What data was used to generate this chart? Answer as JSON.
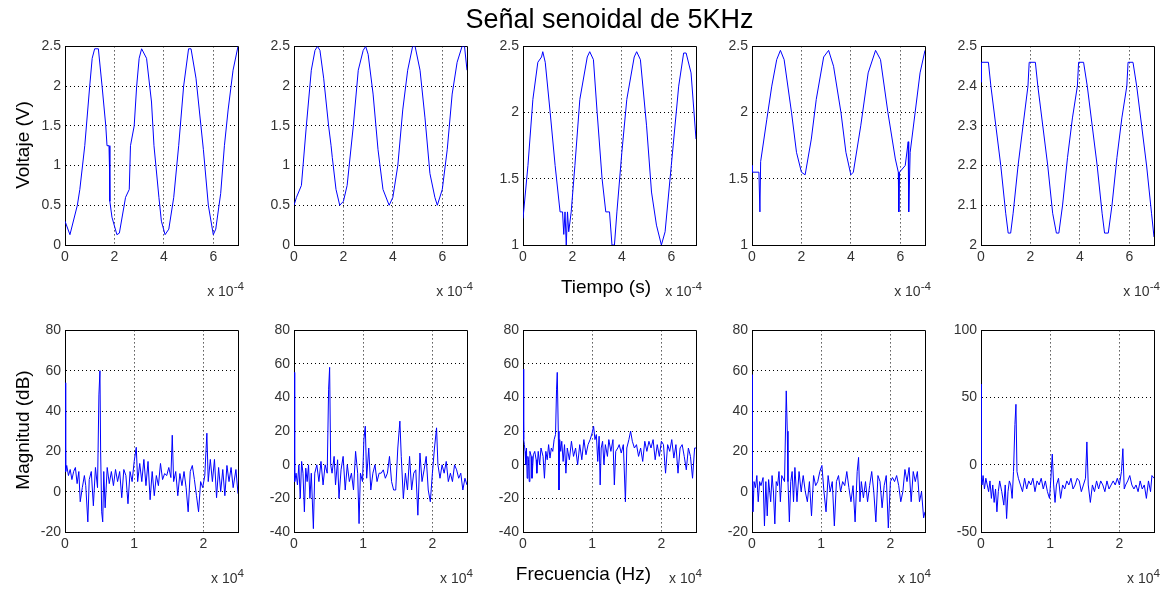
{
  "chart_data": [
    {
      "type": "line",
      "ylabel": "Voltaje (V)",
      "annotations": [
        "x 10$^{-4}$"
      ],
      "color": "#0000ff",
      "grid": true,
      "xlim": [
        0,
        7
      ],
      "xticks": [
        0,
        2,
        4,
        6
      ],
      "ylim": [
        0,
        2.5
      ],
      "yticks": [
        0,
        0.5,
        1,
        1.5,
        2,
        2.5
      ],
      "x": [
        0,
        0.2,
        0.5,
        0.6,
        0.8,
        1.0,
        1.1,
        1.2,
        1.35,
        1.5,
        1.65,
        1.7,
        1.78,
        1.8,
        1.81,
        1.82,
        1.9,
        2.1,
        2.2,
        2.45,
        2.6,
        2.65,
        2.8,
        2.9,
        3.0,
        3.1,
        3.3,
        3.5,
        3.6,
        3.8,
        3.9,
        4.05,
        4.2,
        4.4,
        4.6,
        4.8,
        5.0,
        5.1,
        5.3,
        5.5,
        5.6,
        5.8,
        6.0,
        6.1,
        6.3,
        6.45,
        6.6,
        6.8,
        7.0
      ],
      "values": [
        0.3,
        0.13,
        0.5,
        0.7,
        1.25,
        2.0,
        2.35,
        2.47,
        2.47,
        2.0,
        1.5,
        1.25,
        1.25,
        0.97,
        1.25,
        0.55,
        0.35,
        0.13,
        0.15,
        0.6,
        0.7,
        1.25,
        1.5,
        2.0,
        2.35,
        2.47,
        2.35,
        1.8,
        1.25,
        0.6,
        0.3,
        0.13,
        0.2,
        0.6,
        1.25,
        2.0,
        2.47,
        2.47,
        2.1,
        1.5,
        1.2,
        0.5,
        0.13,
        0.2,
        0.65,
        1.25,
        1.7,
        2.2,
        2.5
      ]
    },
    {
      "type": "line",
      "annotations": [
        "x 10$^{-4}$"
      ],
      "color": "#0000ff",
      "grid": true,
      "xlim": [
        0,
        7
      ],
      "xticks": [
        0,
        2,
        4,
        6
      ],
      "ylim": [
        0,
        2.5
      ],
      "yticks": [
        0,
        0.5,
        1,
        1.5,
        2,
        2.5
      ],
      "x": [
        0,
        0.1,
        0.3,
        0.5,
        0.7,
        0.85,
        0.95,
        1.05,
        1.2,
        1.4,
        1.5,
        1.55,
        1.7,
        1.85,
        2.0,
        2.15,
        2.4,
        2.6,
        2.8,
        2.9,
        3.0,
        3.2,
        3.4,
        3.6,
        3.85,
        4.0,
        4.2,
        4.4,
        4.6,
        4.8,
        4.9,
        5.1,
        5.3,
        5.5,
        5.7,
        5.8,
        6.0,
        6.2,
        6.4,
        6.6,
        6.8,
        6.9,
        7.0
      ],
      "values": [
        0.5,
        0.6,
        0.75,
        1.5,
        2.2,
        2.45,
        2.5,
        2.45,
        2.1,
        1.5,
        1.25,
        1.1,
        0.7,
        0.5,
        0.55,
        0.75,
        1.5,
        2.2,
        2.45,
        2.5,
        2.4,
        1.9,
        1.2,
        0.7,
        0.5,
        0.6,
        1.0,
        1.7,
        2.2,
        2.5,
        2.5,
        2.2,
        1.6,
        0.9,
        0.6,
        0.5,
        0.7,
        1.2,
        1.9,
        2.3,
        2.5,
        2.5,
        2.2
      ]
    },
    {
      "type": "line",
      "title": "Señal senoidal de 5KHz",
      "xlabel": "Tiempo (s)",
      "annotations": [
        "x 10$^{-4}$"
      ],
      "color": "#0000ff",
      "grid": true,
      "xlim": [
        0,
        7
      ],
      "xticks": [
        0,
        2,
        4,
        6
      ],
      "ylim": [
        1,
        2.5
      ],
      "yticks": [
        1,
        1.5,
        2,
        2.5
      ],
      "x": [
        0,
        0.2,
        0.4,
        0.6,
        0.75,
        0.8,
        0.9,
        1.1,
        1.3,
        1.5,
        1.6,
        1.65,
        1.7,
        1.75,
        1.8,
        1.85,
        1.95,
        2.1,
        2.3,
        2.6,
        2.7,
        2.85,
        3.0,
        3.2,
        3.35,
        3.5,
        3.6,
        3.7,
        3.8,
        4.0,
        4.2,
        4.5,
        4.6,
        4.75,
        5.0,
        5.2,
        5.4,
        5.6,
        5.75,
        6.0,
        6.3,
        6.5,
        6.6,
        6.8,
        7.0
      ],
      "values": [
        1.2,
        1.6,
        2.1,
        2.38,
        2.42,
        2.46,
        2.38,
        2.0,
        1.6,
        1.25,
        1.25,
        1.08,
        1.25,
        1.0,
        1.25,
        1.1,
        1.25,
        1.6,
        2.1,
        2.42,
        2.46,
        2.4,
        2.0,
        1.5,
        1.25,
        1.25,
        1.0,
        1.0,
        1.25,
        1.7,
        2.1,
        2.42,
        2.46,
        2.4,
        1.9,
        1.4,
        1.15,
        1.0,
        1.1,
        1.6,
        2.2,
        2.45,
        2.45,
        2.3,
        1.8
      ]
    },
    {
      "type": "line",
      "annotations": [
        "x 10$^{-4}$"
      ],
      "color": "#0000ff",
      "grid": true,
      "xlim": [
        0,
        7
      ],
      "xticks": [
        0,
        2,
        4,
        6
      ],
      "ylim": [
        1,
        2.5
      ],
      "yticks": [
        1,
        1.5,
        2,
        2.5
      ],
      "x": [
        0,
        0.02,
        0.28,
        0.32,
        0.35,
        0.6,
        0.8,
        1.0,
        1.15,
        1.3,
        1.6,
        1.8,
        2.0,
        2.15,
        2.4,
        2.6,
        2.9,
        3.1,
        3.3,
        3.6,
        3.8,
        4.0,
        4.1,
        4.4,
        4.7,
        5.0,
        5.2,
        5.5,
        5.8,
        5.92,
        5.94,
        5.97,
        6.2,
        6.32,
        6.34,
        6.4,
        6.6,
        6.8,
        7.0
      ],
      "values": [
        1.6,
        1.55,
        1.55,
        1.25,
        1.63,
        1.95,
        2.2,
        2.4,
        2.47,
        2.4,
        2.0,
        1.7,
        1.55,
        1.53,
        1.8,
        2.1,
        2.42,
        2.47,
        2.35,
        2.0,
        1.7,
        1.53,
        1.55,
        1.9,
        2.3,
        2.47,
        2.4,
        2.0,
        1.65,
        1.55,
        1.25,
        1.55,
        1.6,
        1.78,
        1.25,
        1.7,
        2.0,
        2.3,
        2.47
      ]
    },
    {
      "type": "line",
      "annotations": [
        "x 10$^{-4}$"
      ],
      "color": "#0000ff",
      "grid": true,
      "xlim": [
        0,
        7
      ],
      "xticks": [
        0,
        2,
        4,
        6
      ],
      "ylim": [
        2,
        2.5
      ],
      "yticks": [
        2,
        2.1,
        2.2,
        2.3,
        2.4,
        2.5
      ],
      "x": [
        0,
        0.02,
        0.3,
        0.4,
        0.6,
        0.8,
        1.0,
        1.1,
        1.2,
        1.3,
        1.5,
        1.7,
        1.9,
        1.95,
        2.2,
        2.3,
        2.5,
        2.7,
        2.9,
        3.05,
        3.15,
        3.3,
        3.5,
        3.7,
        3.9,
        3.95,
        4.15,
        4.3,
        4.5,
        4.7,
        4.9,
        5.0,
        5.15,
        5.3,
        5.5,
        5.7,
        5.9,
        5.95,
        6.15,
        6.3,
        6.5,
        6.7,
        6.9,
        7.0
      ],
      "values": [
        2.41,
        2.46,
        2.46,
        2.4,
        2.3,
        2.2,
        2.08,
        2.03,
        2.03,
        2.08,
        2.2,
        2.3,
        2.4,
        2.46,
        2.46,
        2.4,
        2.3,
        2.2,
        2.08,
        2.03,
        2.03,
        2.1,
        2.22,
        2.32,
        2.4,
        2.46,
        2.46,
        2.4,
        2.3,
        2.2,
        2.08,
        2.03,
        2.03,
        2.1,
        2.22,
        2.32,
        2.4,
        2.46,
        2.46,
        2.4,
        2.3,
        2.2,
        2.08,
        2.02
      ]
    },
    {
      "type": "line",
      "ylabel": "Magnitud (dB)",
      "annotations": [
        "x 10$^{4}$"
      ],
      "color": "#0000ff",
      "grid": true,
      "xlim": [
        0,
        2.5
      ],
      "xticks": [
        0,
        1,
        2
      ],
      "ylim": [
        -20,
        80
      ],
      "yticks": [
        -20,
        0,
        20,
        40,
        60,
        80
      ],
      "x": [
        0,
        0.01,
        0.025,
        0.05,
        0.075,
        0.1,
        0.125,
        0.15,
        0.175,
        0.2,
        0.22,
        0.25,
        0.28,
        0.3,
        0.33,
        0.35,
        0.38,
        0.41,
        0.44,
        0.47,
        0.49,
        0.505,
        0.515,
        0.53,
        0.545,
        0.56,
        0.58,
        0.61,
        0.64,
        0.67,
        0.7,
        0.73,
        0.76,
        0.79,
        0.82,
        0.85,
        0.88,
        0.91,
        0.94,
        0.97,
        1.0,
        1.03,
        1.05,
        1.08,
        1.11,
        1.14,
        1.17,
        1.2,
        1.23,
        1.26,
        1.29,
        1.32,
        1.35,
        1.38,
        1.41,
        1.44,
        1.47,
        1.5,
        1.53,
        1.55,
        1.57,
        1.6,
        1.63,
        1.66,
        1.69,
        1.72,
        1.75,
        1.78,
        1.81,
        1.84,
        1.87,
        1.9,
        1.93,
        1.96,
        1.99,
        2.02,
        2.05,
        2.07,
        2.1,
        2.13,
        2.16,
        2.19,
        2.22,
        2.25,
        2.28,
        2.31,
        2.34,
        2.37,
        2.4,
        2.43,
        2.47,
        2.5
      ],
      "values": [
        54,
        10,
        13,
        8,
        11,
        6,
        10,
        12,
        4,
        10,
        -5,
        2,
        8,
        3,
        -15,
        6,
        10,
        -7,
        12,
        2,
        48,
        60,
        20,
        -10,
        -15,
        10,
        -8,
        12,
        4,
        10,
        3,
        11,
        5,
        10,
        -3,
        11,
        8,
        -6,
        10,
        5,
        15,
        22,
        5,
        14,
        5,
        16,
        3,
        15,
        -4,
        10,
        -2,
        8,
        3,
        14,
        6,
        9,
        8,
        12,
        7,
        28,
        5,
        10,
        -2,
        9,
        3,
        10,
        2,
        -10,
        10,
        13,
        6,
        -2,
        -10,
        5,
        2,
        8,
        29,
        5,
        16,
        5,
        16,
        -3,
        12,
        0,
        11,
        -2,
        13,
        5,
        12,
        2,
        11,
        -1
      ]
    },
    {
      "type": "line",
      "annotations": [
        "x 10$^{4}$"
      ],
      "color": "#0000ff",
      "grid": true,
      "xlim": [
        0,
        2.5
      ],
      "xticks": [
        0,
        1,
        2
      ],
      "ylim": [
        -40,
        80
      ],
      "yticks": [
        -40,
        -20,
        0,
        20,
        40,
        60,
        80
      ],
      "x": [
        0,
        0.01,
        0.03,
        0.05,
        0.07,
        0.09,
        0.11,
        0.13,
        0.15,
        0.17,
        0.19,
        0.21,
        0.23,
        0.25,
        0.28,
        0.3,
        0.33,
        0.36,
        0.39,
        0.42,
        0.45,
        0.48,
        0.5,
        0.515,
        0.53,
        0.55,
        0.58,
        0.6,
        0.63,
        0.65,
        0.68,
        0.71,
        0.74,
        0.77,
        0.8,
        0.83,
        0.86,
        0.89,
        0.92,
        0.94,
        0.96,
        0.99,
        1.01,
        1.03,
        1.05,
        1.08,
        1.11,
        1.14,
        1.17,
        1.2,
        1.23,
        1.26,
        1.29,
        1.32,
        1.35,
        1.38,
        1.41,
        1.44,
        1.47,
        1.5,
        1.53,
        1.55,
        1.58,
        1.61,
        1.64,
        1.67,
        1.7,
        1.73,
        1.76,
        1.79,
        1.82,
        1.85,
        1.88,
        1.91,
        1.94,
        1.97,
        2.0,
        2.03,
        2.06,
        2.08,
        2.11,
        2.14,
        2.17,
        2.2,
        2.23,
        2.26,
        2.29,
        2.32,
        2.35,
        2.38,
        2.41,
        2.44,
        2.47,
        2.5
      ],
      "values": [
        55,
        -10,
        -5,
        -12,
        0,
        -20,
        2,
        -5,
        -28,
        -2,
        -10,
        0,
        -20,
        -5,
        -38,
        -5,
        0,
        -10,
        2,
        -12,
        0,
        -5,
        45,
        58,
        0,
        -5,
        5,
        -12,
        3,
        -20,
        -3,
        5,
        -15,
        0,
        -10,
        -5,
        -15,
        8,
        -5,
        -35,
        -5,
        -10,
        15,
        23,
        -8,
        10,
        -15,
        -5,
        0,
        -10,
        -5,
        -5,
        -3,
        -8,
        -5,
        5,
        -10,
        -15,
        -15,
        10,
        26,
        5,
        -20,
        -5,
        -15,
        5,
        -15,
        -5,
        -3,
        -30,
        7,
        -10,
        -3,
        5,
        -15,
        -22,
        -5,
        10,
        22,
        0,
        -8,
        0,
        -5,
        2,
        -10,
        -5,
        -10,
        0,
        -3,
        -8,
        -5,
        -15,
        -8,
        -12
      ]
    },
    {
      "type": "line",
      "xlabel": "Frecuencia (Hz)",
      "annotations": [
        "x 10$^{4}$"
      ],
      "color": "#0000ff",
      "grid": true,
      "xlim": [
        0,
        2.5
      ],
      "xticks": [
        0,
        1,
        2
      ],
      "ylim": [
        -40,
        80
      ],
      "yticks": [
        -40,
        -20,
        0,
        20,
        40,
        60,
        80
      ],
      "x": [
        0,
        0.01,
        0.02,
        0.03,
        0.04,
        0.05,
        0.06,
        0.07,
        0.08,
        0.09,
        0.1,
        0.12,
        0.13,
        0.15,
        0.17,
        0.19,
        0.2,
        0.22,
        0.24,
        0.26,
        0.29,
        0.31,
        0.33,
        0.35,
        0.37,
        0.39,
        0.41,
        0.43,
        0.45,
        0.47,
        0.485,
        0.495,
        0.51,
        0.52,
        0.53,
        0.545,
        0.56,
        0.58,
        0.6,
        0.62,
        0.64,
        0.67,
        0.7,
        0.73,
        0.76,
        0.79,
        0.82,
        0.85,
        0.88,
        0.91,
        0.94,
        0.97,
        1.0,
        1.02,
        1.04,
        1.06,
        1.08,
        1.1,
        1.115,
        1.13,
        1.15,
        1.17,
        1.19,
        1.22,
        1.24,
        1.27,
        1.3,
        1.32,
        1.34,
        1.37,
        1.39,
        1.42,
        1.45,
        1.48,
        1.5,
        1.53,
        1.555,
        1.58,
        1.61,
        1.64,
        1.67,
        1.7,
        1.73,
        1.76,
        1.79,
        1.82,
        1.85,
        1.88,
        1.91,
        1.94,
        1.97,
        2.0,
        2.03,
        2.06,
        2.09,
        2.12,
        2.15,
        2.18,
        2.21,
        2.24,
        2.27,
        2.3,
        2.33,
        2.36,
        2.39,
        2.42,
        2.45,
        2.48,
        2.5
      ],
      "values": [
        57,
        15,
        12,
        8,
        0,
        10,
        -8,
        5,
        3,
        -10,
        8,
        5,
        -8,
        6,
        8,
        3,
        -5,
        8,
        0,
        10,
        5,
        -8,
        8,
        3,
        12,
        4,
        10,
        8,
        15,
        18,
        45,
        55,
        20,
        -15,
        15,
        8,
        14,
        2,
        12,
        -5,
        10,
        3,
        14,
        5,
        10,
        0,
        12,
        3,
        15,
        6,
        12,
        15,
        19,
        23,
        15,
        18,
        2,
        17,
        -12,
        10,
        14,
        0,
        12,
        5,
        15,
        8,
        15,
        -12,
        8,
        10,
        12,
        7,
        12,
        -22,
        10,
        15,
        20,
        14,
        10,
        12,
        5,
        10,
        2,
        14,
        8,
        14,
        10,
        15,
        3,
        12,
        5,
        14,
        12,
        -5,
        12,
        8,
        15,
        4,
        12,
        -5,
        10,
        12,
        5,
        -3,
        10,
        5,
        -8,
        10,
        10
      ]
    },
    {
      "type": "line",
      "annotations": [
        "x 10$^{4}$"
      ],
      "color": "#0000ff",
      "grid": true,
      "xlim": [
        0,
        2.5
      ],
      "xticks": [
        0,
        1,
        2
      ],
      "ylim": [
        -20,
        80
      ],
      "yticks": [
        -20,
        0,
        20,
        40,
        60,
        80
      ],
      "x": [
        0,
        0.005,
        0.015,
        0.03,
        0.05,
        0.07,
        0.09,
        0.11,
        0.13,
        0.16,
        0.18,
        0.2,
        0.22,
        0.24,
        0.27,
        0.29,
        0.31,
        0.33,
        0.35,
        0.37,
        0.39,
        0.41,
        0.43,
        0.47,
        0.495,
        0.51,
        0.52,
        0.54,
        0.56,
        0.58,
        0.6,
        0.62,
        0.65,
        0.68,
        0.71,
        0.74,
        0.77,
        0.8,
        0.83,
        0.86,
        0.89,
        0.92,
        0.95,
        0.98,
        1.01,
        1.04,
        1.07,
        1.1,
        1.13,
        1.16,
        1.19,
        1.22,
        1.25,
        1.28,
        1.31,
        1.34,
        1.37,
        1.4,
        1.43,
        1.46,
        1.49,
        1.52,
        1.54,
        1.56,
        1.58,
        1.61,
        1.64,
        1.67,
        1.7,
        1.73,
        1.76,
        1.79,
        1.82,
        1.85,
        1.88,
        1.91,
        1.94,
        1.97,
        2.0,
        2.03,
        2.06,
        2.09,
        2.12,
        2.15,
        2.18,
        2.21,
        2.24,
        2.27,
        2.3,
        2.33,
        2.36,
        2.39,
        2.42,
        2.45,
        2.48,
        2.5
      ],
      "values": [
        58,
        10,
        -10,
        5,
        2,
        8,
        -5,
        5,
        3,
        7,
        -17,
        5,
        -12,
        6,
        -5,
        8,
        0,
        -16,
        5,
        3,
        10,
        -5,
        8,
        5,
        50,
        30,
        5,
        -15,
        5,
        10,
        -5,
        12,
        -5,
        10,
        0,
        8,
        0,
        -5,
        5,
        -12,
        8,
        3,
        5,
        10,
        13,
        0,
        -10,
        8,
        0,
        5,
        -17,
        5,
        8,
        0,
        5,
        3,
        10,
        2,
        -5,
        3,
        -15,
        10,
        17,
        -5,
        5,
        -3,
        5,
        -5,
        3,
        10,
        0,
        -15,
        8,
        5,
        -8,
        3,
        8,
        -18,
        5,
        7,
        5,
        8,
        3,
        -5,
        0,
        11,
        5,
        12,
        -5,
        10,
        5,
        10,
        -5,
        0,
        -13,
        -10
      ]
    },
    {
      "type": "line",
      "annotations": [
        "x 10$^{4}$"
      ],
      "color": "#0000ff",
      "grid": true,
      "xlim": [
        0,
        2.5
      ],
      "xticks": [
        0,
        1,
        2
      ],
      "ylim": [
        -50,
        100
      ],
      "yticks": [
        -50,
        0,
        50,
        100
      ],
      "x": [
        0,
        0.005,
        0.015,
        0.03,
        0.05,
        0.07,
        0.09,
        0.11,
        0.13,
        0.15,
        0.17,
        0.19,
        0.21,
        0.23,
        0.25,
        0.27,
        0.3,
        0.33,
        0.35,
        0.37,
        0.39,
        0.41,
        0.43,
        0.45,
        0.47,
        0.49,
        0.505,
        0.52,
        0.54,
        0.57,
        0.6,
        0.63,
        0.66,
        0.69,
        0.72,
        0.75,
        0.78,
        0.81,
        0.84,
        0.87,
        0.9,
        0.93,
        0.96,
        0.99,
        1.01,
        1.03,
        1.05,
        1.07,
        1.09,
        1.12,
        1.15,
        1.18,
        1.21,
        1.24,
        1.27,
        1.3,
        1.33,
        1.36,
        1.39,
        1.42,
        1.45,
        1.48,
        1.51,
        1.53,
        1.55,
        1.58,
        1.61,
        1.64,
        1.67,
        1.7,
        1.73,
        1.76,
        1.79,
        1.82,
        1.85,
        1.88,
        1.91,
        1.94,
        1.97,
        2.0,
        2.03,
        2.05,
        2.07,
        2.09,
        2.12,
        2.15,
        2.18,
        2.21,
        2.24,
        2.27,
        2.3,
        2.33,
        2.36,
        2.39,
        2.42,
        2.45,
        2.47,
        2.5
      ],
      "values": [
        60,
        -10,
        -15,
        -8,
        -18,
        -10,
        -15,
        -20,
        -12,
        -25,
        -15,
        -28,
        -18,
        -35,
        -20,
        -12,
        -20,
        -30,
        -15,
        -40,
        -20,
        -12,
        -15,
        -25,
        -5,
        30,
        45,
        -5,
        -10,
        -15,
        -20,
        -10,
        -18,
        -12,
        -15,
        -10,
        -20,
        -12,
        -15,
        -10,
        -18,
        -12,
        -20,
        -25,
        -10,
        8,
        -15,
        -28,
        -15,
        -10,
        -25,
        -15,
        -18,
        -12,
        -15,
        -10,
        -18,
        -15,
        -10,
        -12,
        -20,
        -15,
        -10,
        17,
        -15,
        -28,
        -15,
        -20,
        -12,
        -18,
        -12,
        -15,
        -20,
        -12,
        -18,
        -15,
        -12,
        -15,
        -10,
        -15,
        -5,
        12,
        -18,
        -15,
        -12,
        -8,
        -15,
        -18,
        -15,
        -20,
        -12,
        -18,
        -15,
        -25,
        -12,
        -20,
        -8,
        -10
      ]
    }
  ]
}
